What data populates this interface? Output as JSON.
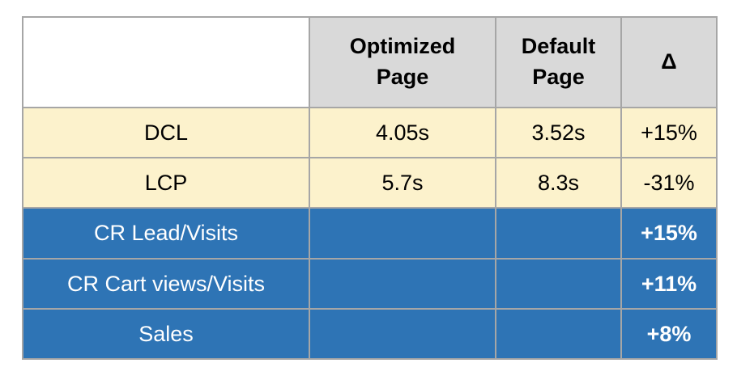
{
  "table": {
    "header": {
      "corner": "",
      "optimized": "Optimized Page",
      "default": "Default Page",
      "delta": "Δ"
    },
    "rows": [
      {
        "label": "DCL",
        "optimized": "4.05s",
        "default": "3.52s",
        "delta": "+15%",
        "theme": "cream"
      },
      {
        "label": "LCP",
        "optimized": "5.7s",
        "default": "8.3s",
        "delta": "-31%",
        "theme": "cream"
      },
      {
        "label": "CR Lead/Visits",
        "optimized": "",
        "default": "",
        "delta": "+15%",
        "theme": "blue"
      },
      {
        "label": "CR Cart views/Visits",
        "optimized": "",
        "default": "",
        "delta": "+11%",
        "theme": "blue"
      },
      {
        "label": "Sales",
        "optimized": "",
        "default": "",
        "delta": "+8%",
        "theme": "blue"
      }
    ],
    "colors": {
      "header_bg": "#d9d9d9",
      "cream_bg": "#fcf2cc",
      "blue_bg": "#2e74b5",
      "border": "#a6a6a6",
      "text_dark": "#000000",
      "text_light": "#ffffff",
      "page_bg": "#ffffff"
    }
  }
}
